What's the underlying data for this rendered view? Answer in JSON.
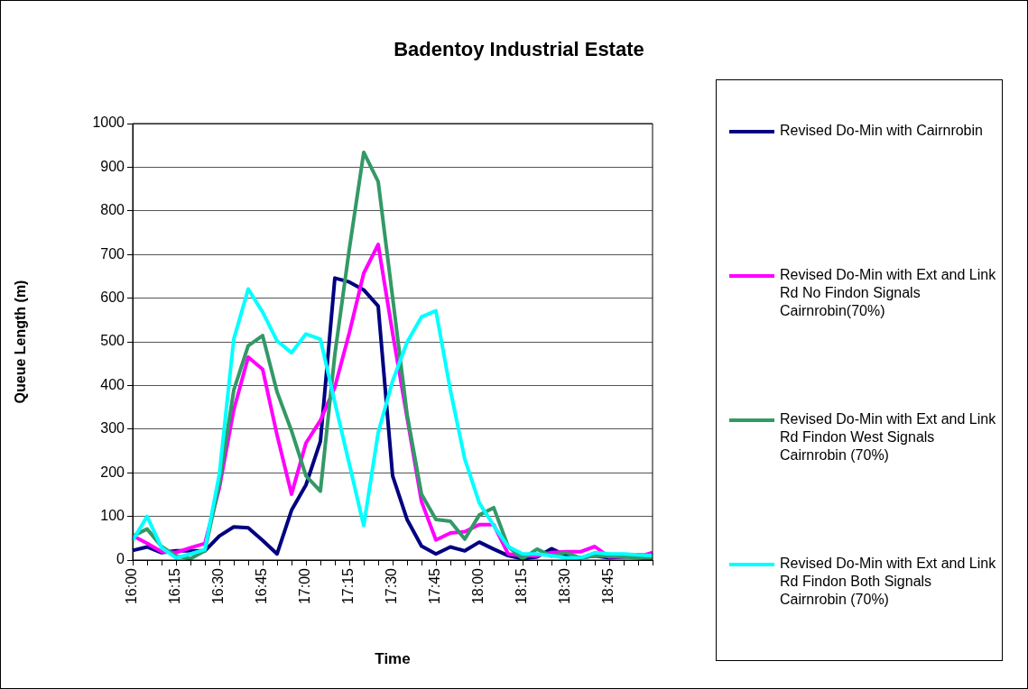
{
  "chart_data": {
    "type": "line",
    "title": "Badentoy Industrial Estate",
    "xlabel": "Time",
    "ylabel": "Queue Length (m)",
    "categories": [
      "16:00",
      null,
      null,
      "16:15",
      null,
      null,
      "16:30",
      null,
      null,
      "16:45",
      null,
      null,
      "17:00",
      null,
      null,
      "17:15",
      null,
      null,
      "17:30",
      null,
      null,
      "17:45",
      null,
      null,
      "18:00",
      null,
      null,
      "18:15",
      null,
      null,
      "18:30",
      null,
      null,
      "18:45",
      null,
      null,
      null
    ],
    "series": [
      {
        "name": "Revised Do-Min with Cairnrobin",
        "color": "#000080",
        "values": [
          22,
          30,
          17,
          21,
          21,
          21,
          55,
          76,
          74,
          45,
          14,
          114,
          172,
          272,
          646,
          637,
          619,
          582,
          193,
          93,
          32,
          14,
          30,
          21,
          41,
          25,
          10,
          3,
          7,
          26,
          10,
          5,
          10,
          5,
          7,
          12,
          10
        ]
      },
      {
        "name": "Revised Do-Min with Ext and Link Rd No Findon Signals Cairnrobin(70%)",
        "color": "#ff00ff",
        "values": [
          56,
          38,
          19,
          17,
          28,
          38,
          165,
          344,
          465,
          437,
          286,
          151,
          268,
          320,
          396,
          520,
          657,
          723,
          520,
          327,
          134,
          46,
          62,
          65,
          81,
          81,
          14,
          10,
          10,
          17,
          19,
          19,
          31,
          7,
          7,
          7,
          17
        ]
      },
      {
        "name": "Revised Do-Min with Ext and Link Rd Findon West Signals Cairnrobin (70%)",
        "color": "#339966",
        "values": [
          55,
          71,
          31,
          9,
          3,
          21,
          175,
          389,
          491,
          514,
          385,
          296,
          193,
          158,
          471,
          712,
          934,
          867,
          602,
          334,
          151,
          93,
          89,
          48,
          103,
          120,
          31,
          3,
          25,
          9,
          17,
          5,
          10,
          9,
          7,
          5,
          3
        ]
      },
      {
        "name": "Revised Do-Min with Ext and Link Rd Findon Both Signals Cairnrobin (70%)",
        "color": "#00ffff",
        "values": [
          45,
          100,
          28,
          5,
          14,
          24,
          196,
          506,
          621,
          568,
          502,
          475,
          518,
          506,
          361,
          220,
          79,
          292,
          410,
          499,
          557,
          571,
          389,
          231,
          131,
          79,
          31,
          14,
          14,
          10,
          5,
          5,
          17,
          14,
          14,
          12,
          10
        ]
      }
    ],
    "ylim": [
      0,
      1000
    ],
    "yticks": [
      0,
      100,
      200,
      300,
      400,
      500,
      600,
      700,
      800,
      900,
      1000
    ],
    "grid": "y",
    "legend": "right",
    "marker": "none",
    "line_style": "solid"
  }
}
